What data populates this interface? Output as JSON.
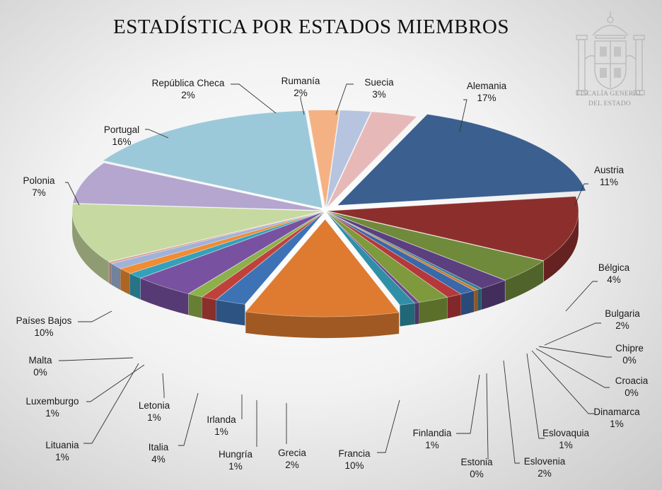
{
  "header": {
    "title": "ESTADÍSTICA POR ESTADOS MIEMBROS",
    "org_line1": "FISCALÍA GENERAL",
    "org_line2": "DEL ESTADO"
  },
  "chart_data": {
    "type": "pie",
    "title": "ESTADÍSTICA POR ESTADOS MIEMBROS",
    "unit": "%",
    "slices": [
      {
        "name": "Alemania",
        "value": 17,
        "label": "17%",
        "color": "#3b5f8e"
      },
      {
        "name": "Austria",
        "value": 11,
        "label": "11%",
        "color": "#8c2f2c"
      },
      {
        "name": "Bélgica",
        "value": 4,
        "label": "4%",
        "color": "#6f8a3a"
      },
      {
        "name": "Bulgaria",
        "value": 2,
        "label": "2%",
        "color": "#5b3f7f"
      },
      {
        "name": "Chipre",
        "value": 0.3,
        "label": "0%",
        "color": "#2f7f93"
      },
      {
        "name": "Croacia",
        "value": 0.3,
        "label": "0%",
        "color": "#c9782e"
      },
      {
        "name": "Dinamarca",
        "value": 1,
        "label": "1%",
        "color": "#3a68a8"
      },
      {
        "name": "Eslovaquia",
        "value": 1,
        "label": "1%",
        "color": "#b5383a"
      },
      {
        "name": "Eslovenia",
        "value": 2,
        "label": "2%",
        "color": "#7e9a3c"
      },
      {
        "name": "Estonia",
        "value": 0.3,
        "label": "0%",
        "color": "#6a4a8c"
      },
      {
        "name": "Finlandia",
        "value": 1,
        "label": "1%",
        "color": "#2f8fa6"
      },
      {
        "name": "Francia",
        "value": 10,
        "label": "10%",
        "color": "#de7b30"
      },
      {
        "name": "Grecia",
        "value": 2,
        "label": "2%",
        "color": "#3d73b5"
      },
      {
        "name": "Hungría",
        "value": 1,
        "label": "1%",
        "color": "#c0413c"
      },
      {
        "name": "Irlanda",
        "value": 1,
        "label": "1%",
        "color": "#8db04a"
      },
      {
        "name": "Italia",
        "value": 4,
        "label": "4%",
        "color": "#7851a0"
      },
      {
        "name": "Letonia",
        "value": 1,
        "label": "1%",
        "color": "#34a1bb"
      },
      {
        "name": "Luxemburgo",
        "value": 1,
        "label": "1%",
        "color": "#ef8c34"
      },
      {
        "name": "Lituania",
        "value": 1,
        "label": "1%",
        "color": "#9fb3d9"
      },
      {
        "name": "Malta",
        "value": 0.3,
        "label": "0%",
        "color": "#d9a3a1"
      },
      {
        "name": "Países Bajos",
        "value": 10,
        "label": "10%",
        "color": "#c6d9a0"
      },
      {
        "name": "Polonia",
        "value": 7,
        "label": "7%",
        "color": "#b4a6cf"
      },
      {
        "name": "Portugal",
        "value": 16,
        "label": "16%",
        "color": "#9cc9da"
      },
      {
        "name": "República Checa",
        "value": 2,
        "label": "2%",
        "color": "#f4b183"
      },
      {
        "name": "Rumanía",
        "value": 2,
        "label": "2%",
        "color": "#b7c4e0"
      },
      {
        "name": "Suecia",
        "value": 3,
        "label": "3%",
        "color": "#e6b9b8"
      }
    ]
  }
}
